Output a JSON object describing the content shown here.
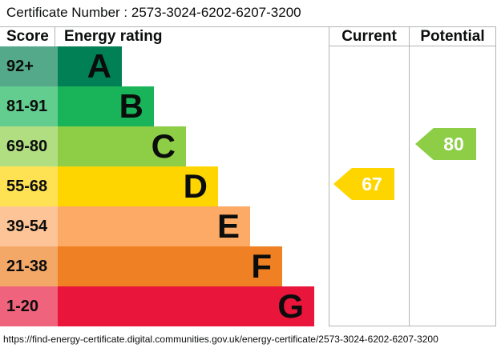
{
  "title": "Certificate Number : 2573-3024-6202-6207-3200",
  "columns": {
    "score": "Score",
    "rating": "Energy rating",
    "current": "Current",
    "potential": "Potential"
  },
  "footer_url": "https://find-energy-certificate.digital.communities.gov.uk/energy-certificate/2573-3024-6202-6207-3200",
  "chart_data": {
    "type": "epc_energy_rating_bands",
    "title": "Energy rating",
    "legend_position": "none",
    "grid": "column-dividers",
    "grid_color": "#b1b4b6",
    "bands": [
      {
        "score_range": "92+",
        "letter": "A",
        "color": "#008054",
        "score_bg": "#55a98b"
      },
      {
        "score_range": "81-91",
        "letter": "B",
        "color": "#19b459",
        "score_bg": "#63cc8f"
      },
      {
        "score_range": "69-80",
        "letter": "C",
        "color": "#8dce46",
        "score_bg": "#b2de82"
      },
      {
        "score_range": "55-68",
        "letter": "D",
        "color": "#ffd500",
        "score_bg": "#ffe254"
      },
      {
        "score_range": "39-54",
        "letter": "E",
        "color": "#fcaa65",
        "score_bg": "#fdc597"
      },
      {
        "score_range": "21-38",
        "letter": "F",
        "color": "#ef8023",
        "score_bg": "#f4a868"
      },
      {
        "score_range": "1-20",
        "letter": "G",
        "color": "#e9153b",
        "score_bg": "#f0637c"
      }
    ],
    "current": {
      "value": 67,
      "band_letter": "D",
      "arrow_color": "#ffd500"
    },
    "potential": {
      "value": 80,
      "band_letter": "C",
      "arrow_color": "#8dce46"
    }
  }
}
